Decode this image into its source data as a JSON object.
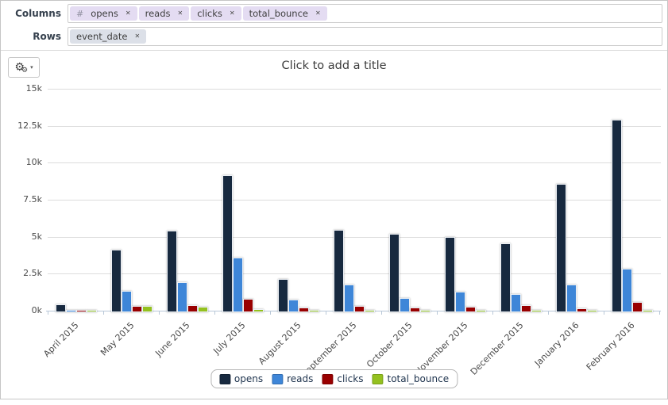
{
  "header": {
    "columns_label": "Columns",
    "rows_label": "Rows",
    "columns_pills": [
      {
        "label": "opens",
        "prefix": "#"
      },
      {
        "label": "reads"
      },
      {
        "label": "clicks"
      },
      {
        "label": "total_bounce"
      }
    ],
    "rows_pills": [
      {
        "label": "event_date"
      }
    ],
    "remove_icon_glyph": "✕"
  },
  "toolbar": {
    "gear_glyph": "⚙",
    "dropdown_caret": "▾"
  },
  "chart_data": {
    "type": "bar",
    "title": "Click to add a title",
    "categories": [
      "April 2015",
      "May 2015",
      "June 2015",
      "July 2015",
      "August 2015",
      "September 2015",
      "October 2015",
      "November 2015",
      "December 2015",
      "January 2016",
      "February 2016"
    ],
    "series": [
      {
        "name": "opens",
        "color": "#17293f",
        "values": [
          450,
          4150,
          5400,
          9150,
          2120,
          5480,
          5200,
          5000,
          4580,
          8560,
          12900
        ]
      },
      {
        "name": "reads",
        "color": "#3e86d8",
        "values": [
          60,
          1320,
          1950,
          3570,
          750,
          1790,
          840,
          1280,
          1150,
          1780,
          2850
        ]
      },
      {
        "name": "clicks",
        "color": "#990000",
        "values": [
          30,
          340,
          400,
          800,
          220,
          310,
          210,
          250,
          370,
          170,
          590
        ]
      },
      {
        "name": "total_bounce",
        "color": "#94c11f",
        "values": [
          20,
          330,
          280,
          100,
          50,
          60,
          40,
          40,
          50,
          40,
          40
        ]
      }
    ],
    "xlabel": "",
    "ylabel": "",
    "ylim": [
      0,
      15000
    ],
    "yticks": [
      0,
      2500,
      5000,
      7500,
      10000,
      12500,
      15000
    ],
    "ytick_labels": [
      "0k",
      "2.5k",
      "5k",
      "7.5k",
      "10k",
      "12.5k",
      "15k"
    ],
    "grid": true,
    "legend_position": "bottom"
  },
  "colors": {
    "columns_pill_bg": "#e4dcf2",
    "rows_pill_bg": "#dce0e8",
    "axis_line": "#b9c8d8",
    "gridline": "#dcdcdc"
  }
}
